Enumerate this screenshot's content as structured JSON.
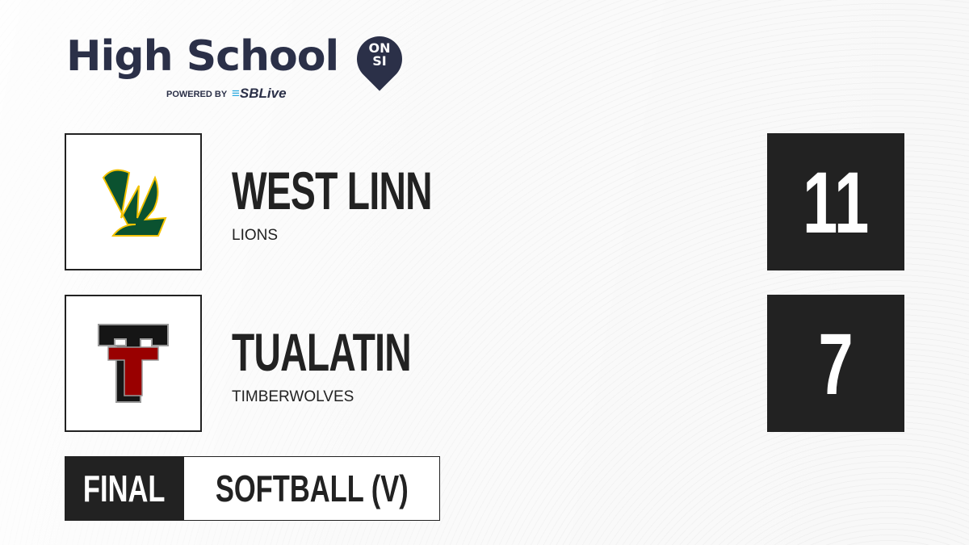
{
  "brand": {
    "title": "High School",
    "badge_line1": "ON",
    "badge_line2": "SI",
    "powered_by": "POWERED BY",
    "partner": "SBLive",
    "partner_color": "#2aa9e0",
    "color": "#2b3048"
  },
  "teams": [
    {
      "name": "WEST LINN",
      "mascot": "LIONS",
      "score": "11",
      "logo_text": "WL",
      "colors": [
        "#0b5230",
        "#f2c200"
      ]
    },
    {
      "name": "TUALATIN",
      "mascot": "TIMBERWOLVES",
      "score": "7",
      "logo_text": "TT",
      "colors": [
        "#111111",
        "#990000"
      ]
    }
  ],
  "status": "FINAL",
  "sport": "SOFTBALL (V)"
}
